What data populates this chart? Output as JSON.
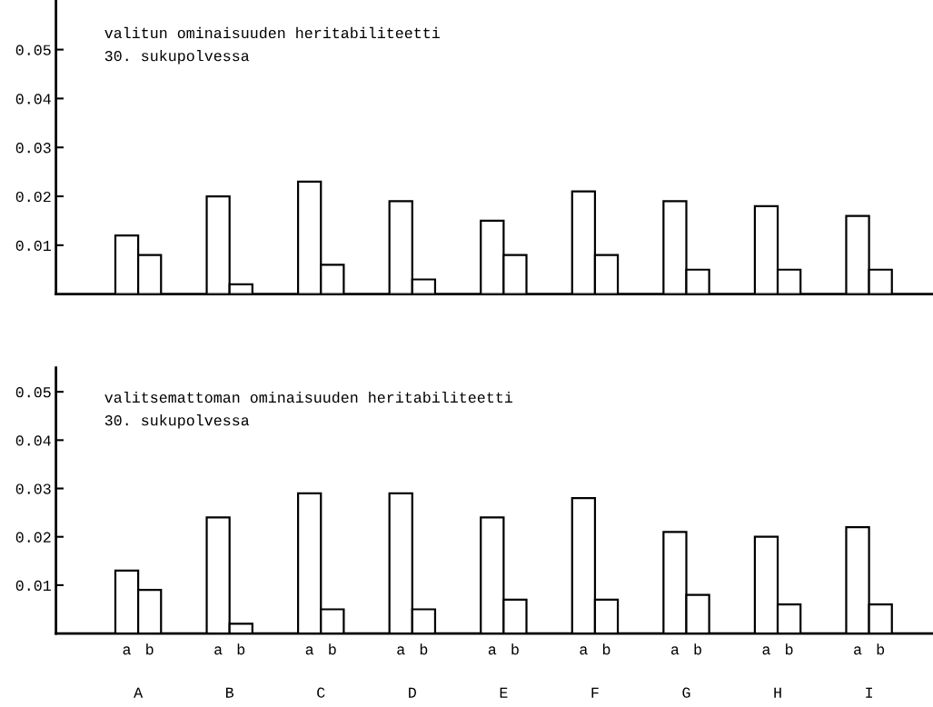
{
  "chart_data": [
    {
      "type": "bar",
      "title": "valitun ominaisuuden heritabiliteetti\n30. sukupolvessa",
      "categories": [
        null,
        null,
        null,
        null,
        null,
        null,
        null,
        null,
        null
      ],
      "series": [
        {
          "color": "#ffffff",
          "values": [
            0.012,
            0.02,
            0.023,
            0.019,
            0.015,
            0.021,
            0.019,
            0.018,
            0.016
          ]
        },
        {
          "color": "#ffffff",
          "values": [
            0.008,
            0.002,
            0.006,
            0.003,
            0.008,
            0.008,
            0.005,
            0.005,
            0.005
          ]
        }
      ],
      "ylim": [
        0,
        0.06
      ],
      "yticks": [
        0.01,
        0.02,
        0.03,
        0.04,
        0.05
      ],
      "tick_labels": "y"
    },
    {
      "type": "bar",
      "title": "valitsemattoman ominaisuuden heritabiliteetti\n30. sukupolvessa",
      "categories": [
        "A",
        "B",
        "C",
        "D",
        "E",
        "F",
        "G",
        "H",
        "I"
      ],
      "series": [
        {
          "name": "a",
          "color": "#ffffff",
          "values": [
            0.013,
            0.024,
            0.029,
            0.029,
            0.024,
            0.028,
            0.021,
            0.02,
            0.022
          ]
        },
        {
          "name": "b",
          "color": "#ffffff",
          "values": [
            0.009,
            0.002,
            0.005,
            0.005,
            0.007,
            0.007,
            0.008,
            0.006,
            0.006
          ]
        }
      ],
      "ylim": [
        0,
        0.055
      ],
      "yticks": [
        0.01,
        0.02,
        0.03,
        0.04,
        0.05
      ]
    }
  ]
}
